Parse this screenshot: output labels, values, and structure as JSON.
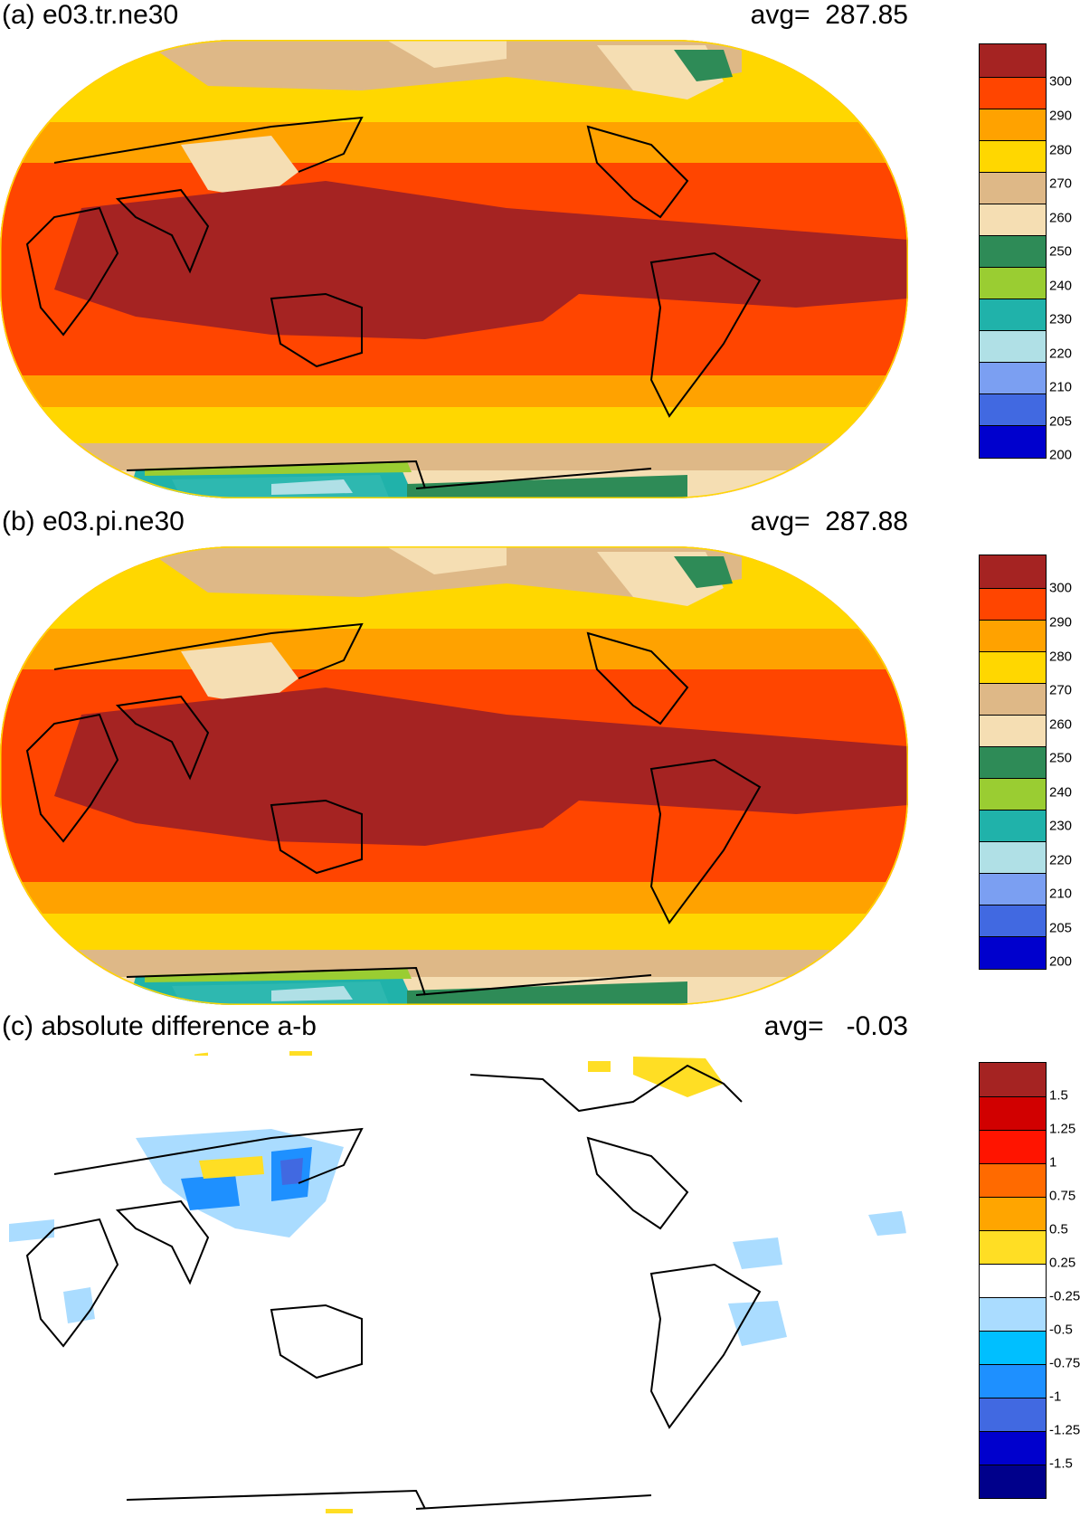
{
  "panels": [
    {
      "id": "a",
      "title": "(a) e03.tr.ne30",
      "avg_text": "avg=  287.85",
      "kind": "temperature"
    },
    {
      "id": "b",
      "title": "(b) e03.pi.ne30",
      "avg_text": "avg=  287.88",
      "kind": "temperature"
    },
    {
      "id": "c",
      "title": "(c) absolute difference a-b",
      "avg_text": "avg=   -0.03",
      "kind": "difference"
    }
  ],
  "colorbars": {
    "temperature": {
      "labels": [
        "300",
        "290",
        "280",
        "270",
        "260",
        "250",
        "240",
        "230",
        "220",
        "210",
        "205",
        "200"
      ],
      "colors": [
        "#a52322",
        "#ff4500",
        "#ffa200",
        "#ffd700",
        "#deb887",
        "#f5deb3",
        "#2e8b57",
        "#9acd32",
        "#20b2aa",
        "#b0e0e6",
        "#7b9ff2",
        "#4169e1",
        "#0000cd"
      ]
    },
    "difference": {
      "labels": [
        "1.5",
        "1.25",
        "1",
        "0.75",
        "0.5",
        "0.25",
        "-0.25",
        "-0.5",
        "-0.75",
        "-1",
        "-1.25",
        "-1.5"
      ],
      "colors": [
        "#a52322",
        "#d10000",
        "#ff1400",
        "#ff6a00",
        "#ffa500",
        "#ffde24",
        "#ffffff",
        "#aadcff",
        "#00bfff",
        "#1e90ff",
        "#4169e1",
        "#0000cd",
        "#00008b"
      ]
    }
  }
}
